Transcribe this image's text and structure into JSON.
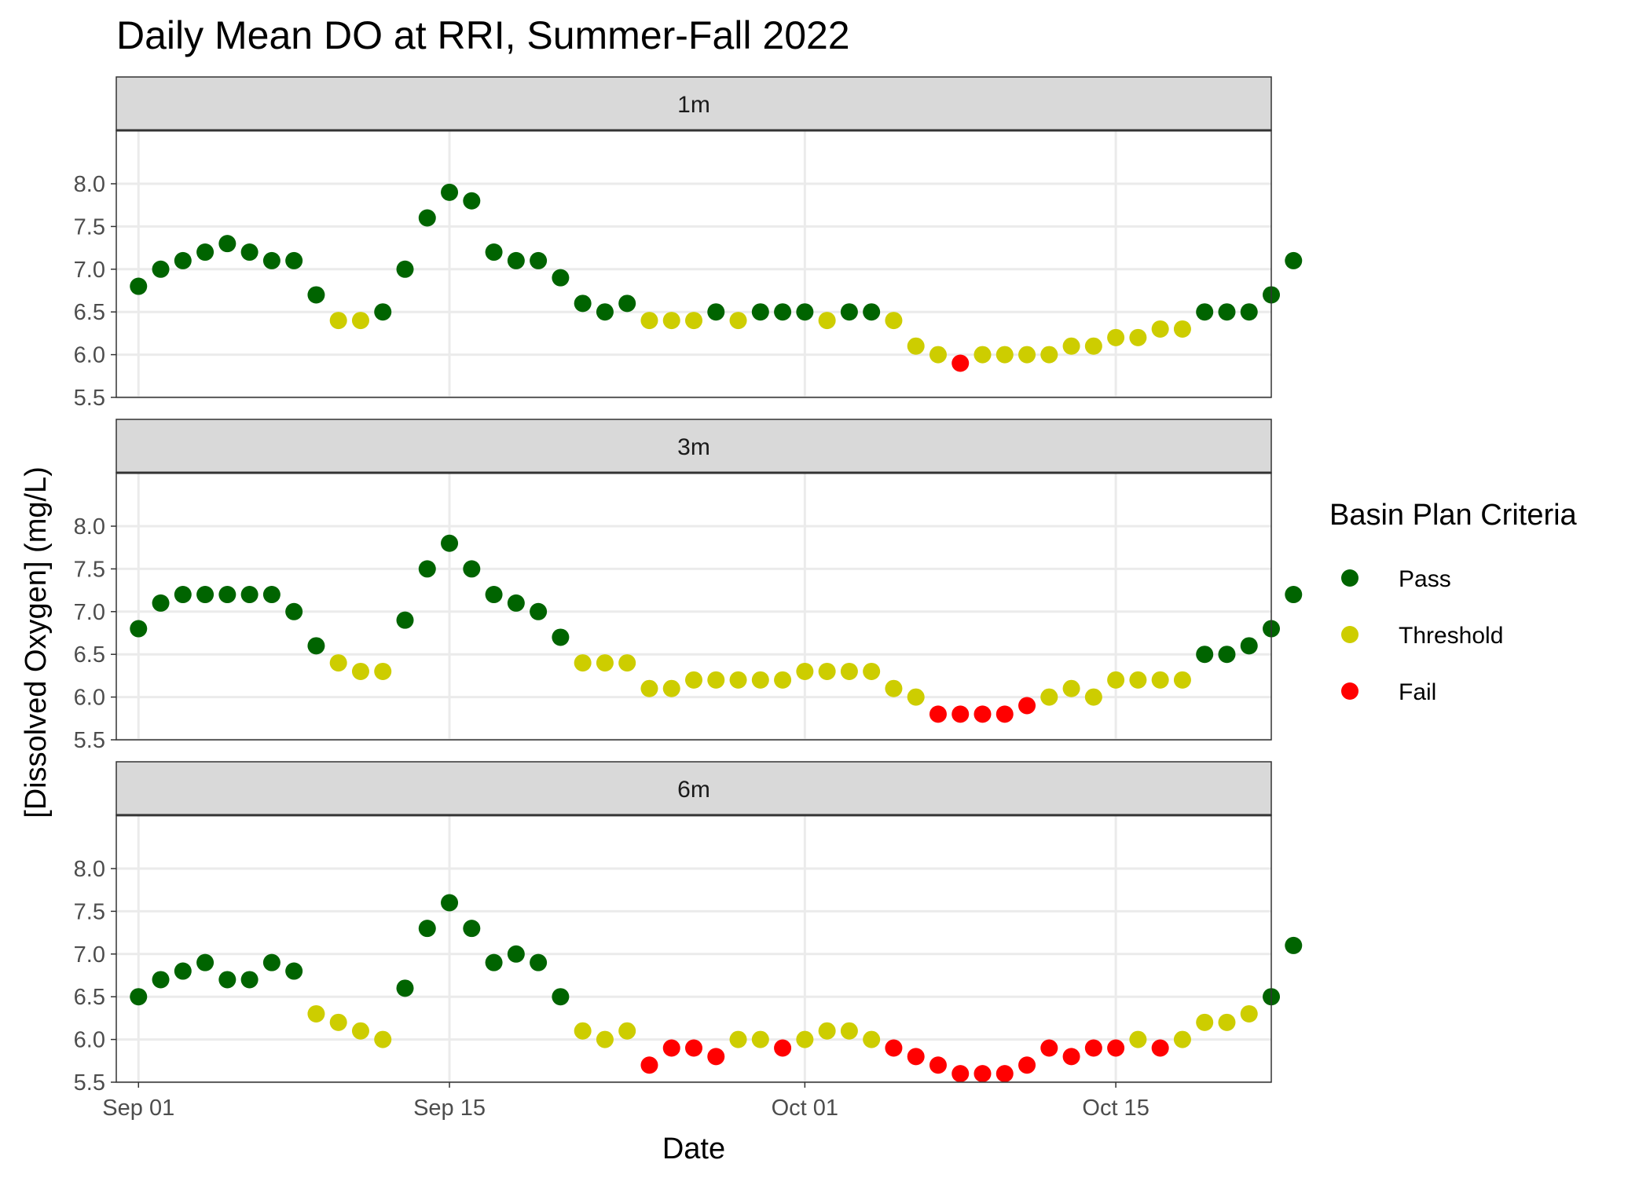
{
  "chart_data": {
    "type": "scatter",
    "title": "Daily Mean DO at RRI, Summer-Fall 2022",
    "xlabel": "Date",
    "ylabel": "[Dissolved Oxygen] (mg/L)",
    "x_start": "2022-09-01",
    "x_ticks": [
      {
        "label": "Sep 01",
        "date": "2022-09-01"
      },
      {
        "label": "Sep 15",
        "date": "2022-09-15"
      },
      {
        "label": "Oct 01",
        "date": "2022-10-01"
      },
      {
        "label": "Oct 15",
        "date": "2022-10-15"
      }
    ],
    "xlim": [
      "2022-08-31",
      "2022-10-22"
    ],
    "ylim": [
      5.5,
      8.0
    ],
    "y_ticks": [
      "5.5",
      "6.0",
      "6.5",
      "7.0",
      "7.5",
      "8.0"
    ],
    "grid": true,
    "legend": {
      "title": "Basin Plan Criteria",
      "placement": "right",
      "entries": [
        {
          "key": "P",
          "label": "Pass",
          "color": "#006400"
        },
        {
          "key": "T",
          "label": "Threshold",
          "color": "#CDCD00"
        },
        {
          "key": "F",
          "label": "Fail",
          "color": "#FF0000"
        }
      ]
    },
    "panels": [
      {
        "label": "1m",
        "values": [
          6.8,
          7.0,
          7.1,
          7.2,
          7.3,
          7.2,
          7.1,
          7.1,
          6.7,
          6.4,
          6.4,
          6.5,
          7.0,
          7.6,
          7.9,
          7.8,
          7.2,
          7.1,
          7.1,
          6.9,
          6.6,
          6.5,
          6.6,
          6.4,
          6.4,
          6.4,
          6.5,
          6.4,
          6.5,
          6.5,
          6.5,
          6.4,
          6.5,
          6.5,
          6.4,
          6.1,
          6.0,
          5.9,
          6.0,
          6.0,
          6.0,
          6.0,
          6.1,
          6.1,
          6.2,
          6.2,
          6.3,
          6.3,
          6.5,
          6.5,
          6.5,
          6.7,
          7.1
        ],
        "status": "PPPPPPPPPTTPPPPPPPPPPPPTTTPTPPPTPPTTTFTTTTTTTTTTPPPPP"
      },
      {
        "label": "3m",
        "values": [
          6.8,
          7.1,
          7.2,
          7.2,
          7.2,
          7.2,
          7.2,
          7.0,
          6.6,
          6.4,
          6.3,
          6.3,
          6.9,
          7.5,
          7.8,
          7.5,
          7.2,
          7.1,
          7.0,
          6.7,
          6.4,
          6.4,
          6.4,
          6.1,
          6.1,
          6.2,
          6.2,
          6.2,
          6.2,
          6.2,
          6.3,
          6.3,
          6.3,
          6.3,
          6.1,
          6.0,
          5.8,
          5.8,
          5.8,
          5.8,
          5.9,
          6.0,
          6.1,
          6.0,
          6.2,
          6.2,
          6.2,
          6.2,
          6.5,
          6.5,
          6.6,
          6.8,
          7.2
        ],
        "status": "PPPPPPPPPTTTPPPPPPPPTTTTTTTTTTTTTTTTFFFFFTTTTTTTPPPPP"
      },
      {
        "label": "6m",
        "values": [
          6.5,
          6.7,
          6.8,
          6.9,
          6.7,
          6.7,
          6.9,
          6.8,
          6.3,
          6.2,
          6.1,
          6.0,
          6.6,
          7.3,
          7.6,
          7.3,
          6.9,
          7.0,
          6.9,
          6.5,
          6.1,
          6.0,
          6.1,
          5.7,
          5.9,
          5.9,
          5.8,
          6.0,
          6.0,
          5.9,
          6.0,
          6.1,
          6.1,
          6.0,
          5.9,
          5.8,
          5.7,
          5.6,
          5.6,
          5.6,
          5.7,
          5.9,
          5.8,
          5.9,
          5.9,
          6.0,
          5.9,
          6.0,
          6.2,
          6.2,
          6.3,
          6.5,
          7.1
        ],
        "status": "PPPPPPPPTTTTPPPPPPPPTTTFFFFTTFTTTTFFFFFFFFFFFTFTTTTPP"
      }
    ]
  }
}
